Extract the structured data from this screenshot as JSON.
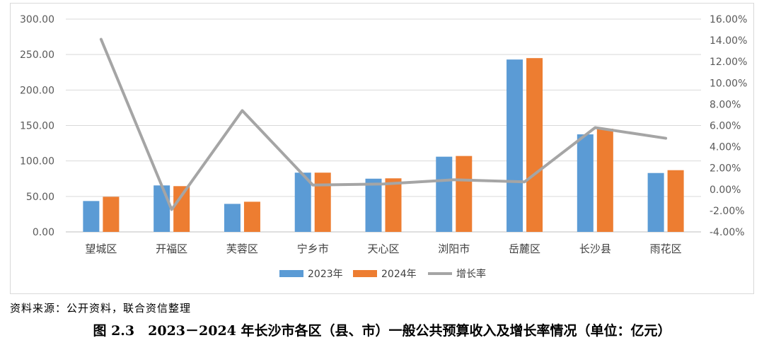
{
  "chart_data": {
    "type": "bar",
    "categories": [
      "望城区",
      "开福区",
      "芙蓉区",
      "宁乡市",
      "天心区",
      "浏阳市",
      "岳麓区",
      "长沙县",
      "雨花区"
    ],
    "series": [
      {
        "name": "2023年",
        "type": "bar",
        "axis": "left",
        "color": "#5B9BD5",
        "values": [
          43.5,
          65.5,
          39.5,
          83.5,
          75.0,
          106.0,
          243.0,
          137.5,
          83.0
        ]
      },
      {
        "name": "2024年",
        "type": "bar",
        "axis": "left",
        "color": "#ED7D31",
        "values": [
          49.5,
          64.5,
          42.5,
          83.5,
          75.5,
          107.0,
          245.0,
          145.5,
          87.0
        ]
      },
      {
        "name": "增长率",
        "type": "line",
        "axis": "right",
        "color": "#A5A5A5",
        "values": [
          14.1,
          -1.9,
          7.4,
          0.4,
          0.5,
          0.9,
          0.7,
          5.8,
          4.8
        ]
      }
    ],
    "left_axis": {
      "min": 0,
      "max": 300,
      "step": 50,
      "tick_labels": [
        "0.00",
        "50.00",
        "100.00",
        "150.00",
        "200.00",
        "250.00",
        "300.00"
      ]
    },
    "right_axis": {
      "min": -4,
      "max": 16,
      "step": 2,
      "tick_labels": [
        "-4.00%",
        "-2.00%",
        "0.00%",
        "2.00%",
        "4.00%",
        "6.00%",
        "8.00%",
        "10.00%",
        "12.00%",
        "14.00%",
        "16.00%"
      ]
    },
    "grid": true,
    "legend_position": "bottom"
  },
  "source_note": "资料来源：公开资料，联合资信整理",
  "caption": "图 2.3　2023－2024 年长沙市各区（县、市）一般公共预算收入及增长率情况（单位：亿元）"
}
